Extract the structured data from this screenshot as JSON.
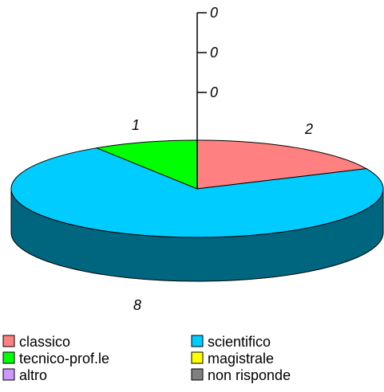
{
  "chart_data": {
    "type": "pie",
    "title": "",
    "categories": [
      "classico",
      "scientifico",
      "tecnico-prof.le",
      "magistrale",
      "altro",
      "non risponde"
    ],
    "values": [
      2,
      8,
      1,
      0,
      0,
      0
    ],
    "colors": [
      "#ff8080",
      "#00ccff",
      "#00ff00",
      "#ffff00",
      "#cc99ff",
      "#808080"
    ],
    "side_colors": [
      "#993333",
      "#006680",
      "#006600",
      "#808000",
      "#664c80",
      "#404040"
    ],
    "style": "3d",
    "zero_value_labels": [
      "0",
      "0",
      "0"
    ],
    "legend": {
      "position": "bottom",
      "columns": 2,
      "entries": [
        "classico",
        "scientifico",
        "tecnico-prof.le",
        "magistrale",
        "altro",
        "non risponde"
      ]
    }
  }
}
